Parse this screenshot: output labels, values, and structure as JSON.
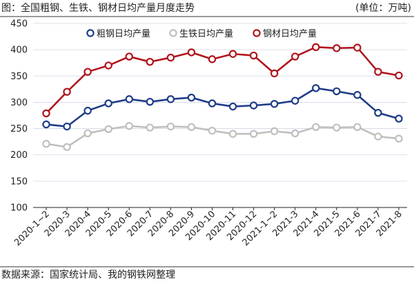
{
  "header": {
    "title": "图：全国粗钢、生铁、钢材日均产量月度走势",
    "unit": "(单位：万吨)"
  },
  "footer": {
    "source": "数据来源：国家统计局、我的钢铁网整理"
  },
  "chart_data": {
    "type": "line",
    "categories": [
      "2020-1~2",
      "2020-3",
      "2020-4",
      "2020-5",
      "2020-6",
      "2020-7",
      "2020-8",
      "2020-9",
      "2020-10",
      "2020-11",
      "2020-12",
      "2021-1~2",
      "2021-3",
      "2021-4",
      "2021-5",
      "2021-6",
      "2021-7",
      "2021-8"
    ],
    "yticks": [
      "100",
      "150",
      "200",
      "250",
      "300",
      "350",
      "400",
      "450"
    ],
    "ylim": [
      100,
      450
    ],
    "grid": "horizontal",
    "legend_position": "top",
    "series": [
      {
        "name": "粗钢日均产量",
        "color": "#1f3c88",
        "values": [
          258,
          254,
          284,
          298,
          306,
          301,
          306,
          309,
          298,
          292,
          294,
          297,
          303,
          327,
          321,
          314,
          280,
          269
        ]
      },
      {
        "name": "生铁日均产量",
        "color": "#bfbfbf",
        "values": [
          221,
          215,
          241,
          249,
          255,
          252,
          254,
          253,
          246,
          240,
          240,
          245,
          241,
          253,
          252,
          253,
          235,
          231
        ]
      },
      {
        "name": "钢材日均产量",
        "color": "#b0161e",
        "values": [
          279,
          320,
          358,
          370,
          387,
          377,
          385,
          395,
          382,
          392,
          389,
          355,
          387,
          405,
          403,
          404,
          358,
          351
        ]
      }
    ]
  }
}
